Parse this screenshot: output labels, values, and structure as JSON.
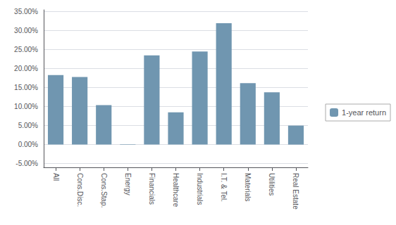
{
  "chart_data": {
    "type": "bar",
    "categories": [
      "All",
      "Cons.Disc.",
      "Cons.Stap.",
      "Energy",
      "Financials",
      "Healthcare",
      "Industrials",
      "I.T. & Tel.",
      "Materials",
      "Utilities",
      "Real Estate"
    ],
    "series": [
      {
        "name": "1-year return",
        "color": "#7096b0",
        "values": [
          0.183,
          0.178,
          0.104,
          0.001,
          0.235,
          0.085,
          0.245,
          0.32,
          0.162,
          0.138,
          0.05
        ]
      }
    ],
    "ylim": [
      -0.06,
      0.355
    ],
    "yticks": [
      {
        "value": -0.05,
        "label": "-5.00%"
      },
      {
        "value": 0.0,
        "label": "0.00%"
      },
      {
        "value": 0.05,
        "label": "5.00%"
      },
      {
        "value": 0.1,
        "label": "10.00%"
      },
      {
        "value": 0.15,
        "label": "15.00%"
      },
      {
        "value": 0.2,
        "label": "20.00%"
      },
      {
        "value": 0.25,
        "label": "25.00%"
      },
      {
        "value": 0.3,
        "label": "30.00%"
      },
      {
        "value": 0.35,
        "label": "35.00%"
      }
    ],
    "grid": true,
    "legend": "right"
  }
}
